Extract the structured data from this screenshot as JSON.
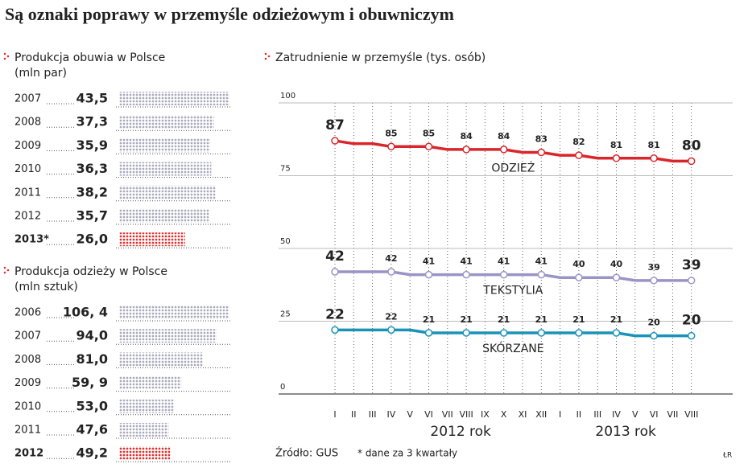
{
  "title": "Są oznaki poprawy w przemyśle odzieżowym i obuwniczym",
  "chart_data": [
    {
      "type": "hbar",
      "title": "Produkcja obuwia w Polsce",
      "unit": "(mln par)",
      "categories": [
        "2007",
        "2008",
        "2009",
        "2010",
        "2011",
        "2012",
        "2013*"
      ],
      "values": [
        43.5,
        37.3,
        35.9,
        36.3,
        38.2,
        35.7,
        26.0
      ],
      "value_labels": [
        "43,5",
        "37,3",
        "35,9",
        "36,3",
        "38,2",
        "35,7",
        "26,0"
      ],
      "colors": [
        "#aaaabd",
        "#aaaabd",
        "#aaaabd",
        "#aaaabd",
        "#aaaabd",
        "#aaaabd",
        "#e0302f"
      ]
    },
    {
      "type": "hbar",
      "title": "Produkcja odzieży w Polsce",
      "unit": "(mln sztuk)",
      "categories": [
        "2006",
        "2007",
        "2008",
        "2009",
        "2010",
        "2011",
        "2012"
      ],
      "values": [
        106.4,
        94.0,
        81.0,
        59.9,
        53.0,
        47.6,
        49.2
      ],
      "value_labels": [
        "106, 4",
        "94,0",
        "81,0",
        "59, 9",
        "53,0",
        "47,6",
        "49,2"
      ],
      "colors": [
        "#aaaabd",
        "#aaaabd",
        "#aaaabd",
        "#aaaabd",
        "#aaaabd",
        "#aaaabd",
        "#e0302f"
      ]
    },
    {
      "type": "line",
      "title": "Zatrudnienie w przemyśle (tys. osób)",
      "categories": [
        "I",
        "II",
        "III",
        "IV",
        "V",
        "VI",
        "VII",
        "VIII",
        "IX",
        "X",
        "XI",
        "XII",
        "I",
        "II",
        "III",
        "IV",
        "V",
        "VI",
        "VII",
        "VIII"
      ],
      "year_labels": [
        "2012 rok",
        "2013 rok"
      ],
      "ylim": [
        0,
        100
      ],
      "yticks": [
        0,
        25,
        50,
        75,
        100
      ],
      "grid": true,
      "series": [
        {
          "name": "ODZIEŻ",
          "color": "#d9262c",
          "values": [
            87,
            86,
            86,
            85,
            85,
            85,
            84,
            84,
            84,
            84,
            83,
            83,
            82,
            82,
            81,
            81,
            81,
            81,
            80,
            80
          ],
          "value_labels": [
            "87",
            null,
            null,
            "85",
            null,
            "85",
            null,
            "84",
            null,
            "84",
            null,
            "83",
            null,
            "82",
            null,
            "81",
            null,
            "81",
            null,
            "80"
          ]
        },
        {
          "name": "TEKSTYLIA",
          "color": "#9a94c6",
          "values": [
            42,
            42,
            42,
            42,
            41,
            41,
            41,
            41,
            41,
            41,
            41,
            41,
            40,
            40,
            40,
            40,
            39,
            39,
            39,
            39
          ],
          "value_labels": [
            "42",
            null,
            null,
            "42",
            null,
            "41",
            null,
            "41",
            null,
            "41",
            null,
            "41",
            null,
            "40",
            null,
            "40",
            null,
            "39",
            null,
            "39"
          ]
        },
        {
          "name": "SKÓRZANE",
          "color": "#1a93b8",
          "values": [
            22,
            22,
            22,
            22,
            22,
            21,
            21,
            21,
            21,
            21,
            21,
            21,
            21,
            21,
            21,
            21,
            20,
            20,
            20,
            20
          ],
          "value_labels": [
            "22",
            null,
            null,
            "22",
            null,
            "21",
            null,
            "21",
            null,
            "21",
            null,
            "21",
            null,
            "21",
            null,
            "21",
            null,
            "20",
            null,
            "20"
          ]
        }
      ]
    }
  ],
  "footer": {
    "source": "Źródło: GUS",
    "note": "* dane za 3 kwartały",
    "author": "ŁR"
  }
}
